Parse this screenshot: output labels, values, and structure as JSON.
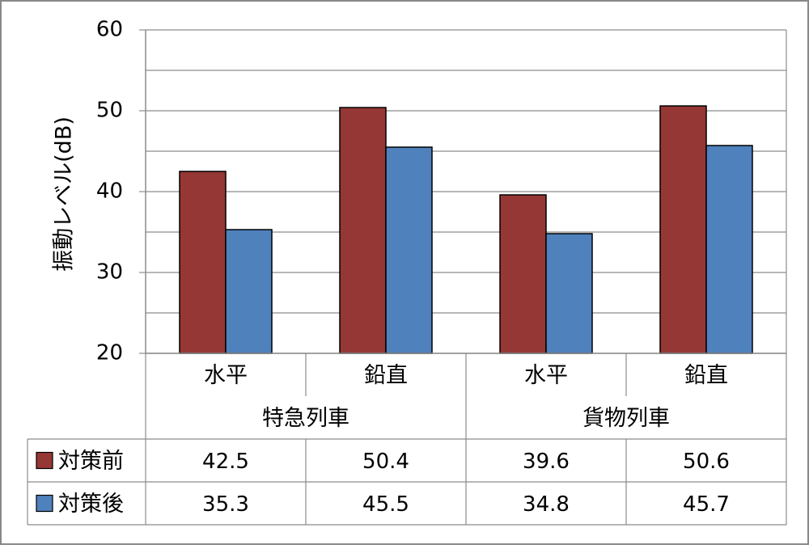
{
  "chart_data": {
    "type": "bar",
    "title": "",
    "ylabel": "振動レベル(dB)",
    "ylim": [
      20,
      60
    ],
    "yticks": [
      20,
      30,
      40,
      50,
      60
    ],
    "grid": true,
    "categories": [
      "水平",
      "鉛直",
      "水平",
      "鉛直"
    ],
    "groups": [
      {
        "label": "特急列車",
        "categories": [
          "水平",
          "鉛直"
        ]
      },
      {
        "label": "貨物列車",
        "categories": [
          "水平",
          "鉛直"
        ]
      }
    ],
    "series": [
      {
        "name": "対策前",
        "color": "#953735",
        "values": [
          42.5,
          50.4,
          39.6,
          50.6
        ]
      },
      {
        "name": "対策後",
        "color": "#4f81bd",
        "values": [
          35.3,
          45.5,
          34.8,
          45.7
        ]
      }
    ],
    "table_values": [
      [
        "42.5",
        "50.4",
        "39.6",
        "50.6"
      ],
      [
        "35.3",
        "45.5",
        "34.8",
        "45.7"
      ]
    ]
  }
}
